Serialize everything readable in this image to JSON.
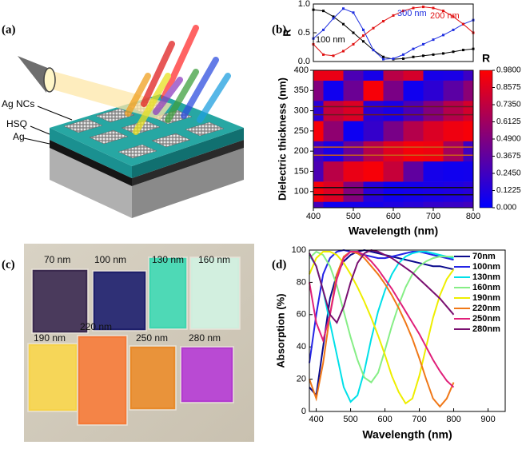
{
  "panel_labels": [
    "(a)",
    "(b)",
    "(c)",
    "(d)"
  ],
  "illustration": {
    "labels": [
      "Ag NCs",
      "HSQ",
      "Ag"
    ]
  },
  "photo": {
    "samples": [
      {
        "label": "70 nm",
        "color": "#3b2a4f"
      },
      {
        "label": "100 nm",
        "color": "#1e1f6b"
      },
      {
        "label": "130 nm",
        "color": "#3fd6b0"
      },
      {
        "label": "160 nm",
        "color": "#cfeedd"
      },
      {
        "label": "190 nm",
        "color": "#f6d34a"
      },
      {
        "label": "220 nm",
        "color": "#f47a38"
      },
      {
        "label": "250 nm",
        "color": "#e88a2a"
      },
      {
        "label": "280 nm",
        "color": "#b33bd0"
      }
    ]
  },
  "chart_data": [
    {
      "type": "line",
      "ylabel": "R",
      "markers": true,
      "x": [
        400,
        425,
        450,
        475,
        500,
        525,
        550,
        575,
        600,
        625,
        650,
        675,
        700,
        725,
        750,
        775,
        800
      ],
      "xlim": [
        400,
        800
      ],
      "ylim": [
        0,
        1
      ],
      "yticks": [
        {
          "value": 0,
          "label": "0.0"
        },
        {
          "value": 0.5,
          "label": "0.5"
        },
        {
          "value": 1,
          "label": "1.0"
        }
      ],
      "series": [
        {
          "name": "100 nm",
          "color": "#000000",
          "values": [
            0.9,
            0.88,
            0.78,
            0.65,
            0.5,
            0.35,
            0.2,
            0.08,
            0.04,
            0.05,
            0.08,
            0.1,
            0.12,
            0.14,
            0.17,
            0.2,
            0.22
          ]
        },
        {
          "name": "300 nm",
          "color": "#1f2fe0",
          "values": [
            0.4,
            0.55,
            0.75,
            0.92,
            0.85,
            0.55,
            0.2,
            0.04,
            0.05,
            0.12,
            0.22,
            0.3,
            0.38,
            0.46,
            0.55,
            0.65,
            0.72
          ]
        },
        {
          "name": "200 nm",
          "color": "#e01010",
          "values": [
            0.3,
            0.12,
            0.1,
            0.18,
            0.3,
            0.45,
            0.58,
            0.7,
            0.8,
            0.88,
            0.93,
            0.95,
            0.93,
            0.88,
            0.78,
            0.65,
            0.5
          ]
        }
      ]
    },
    {
      "type": "heatmap",
      "xlabel": "Wavelength (nm)",
      "ylabel": "Dielectric thickness (nm)",
      "colorbar_title": "R",
      "x": [
        400,
        450,
        500,
        550,
        600,
        650,
        700,
        750,
        800
      ],
      "y": [
        50,
        100,
        150,
        200,
        250,
        300,
        350,
        400
      ],
      "z": [
        [
          0.27,
          0.06,
          0.08,
          0.08,
          0.12,
          0.15,
          0.2,
          0.22,
          0.25
        ],
        [
          0.94,
          0.84,
          0.5,
          0.15,
          0.06,
          0.08,
          0.1,
          0.12,
          0.15
        ],
        [
          0.29,
          0.71,
          0.9,
          0.95,
          0.76,
          0.37,
          0.08,
          0.06,
          0.07
        ],
        [
          0.25,
          0.1,
          0.4,
          0.69,
          0.86,
          0.94,
          0.92,
          0.63,
          0.24
        ],
        [
          0.95,
          0.55,
          0.05,
          0.2,
          0.46,
          0.69,
          0.84,
          0.92,
          0.95
        ],
        [
          0.16,
          0.75,
          0.84,
          0.16,
          0.1,
          0.29,
          0.5,
          0.69,
          0.81
        ],
        [
          0.5,
          0.06,
          0.41,
          0.95,
          0.47,
          0.06,
          0.17,
          0.35,
          0.53
        ],
        [
          0.9,
          0.9,
          0.29,
          0.09,
          0.71,
          0.82,
          0.09,
          0.1,
          0.23
        ]
      ],
      "xlim": [
        400,
        800
      ],
      "ylim": [
        60,
        400
      ],
      "xticks": [
        400,
        500,
        600,
        700,
        800
      ],
      "yticks": [
        100,
        150,
        200,
        250,
        300,
        350,
        400
      ],
      "zlim": [
        0,
        0.98
      ],
      "zticks": [
        {
          "value": 0,
          "label": "0.000"
        },
        {
          "value": 0.1225,
          "label": "0.1225"
        },
        {
          "value": 0.245,
          "label": "0.2450"
        },
        {
          "value": 0.3675,
          "label": "0.3675"
        },
        {
          "value": 0.49,
          "label": "0.4900"
        },
        {
          "value": 0.6125,
          "label": "0.6125"
        },
        {
          "value": 0.735,
          "label": "0.7350"
        },
        {
          "value": 0.8575,
          "label": "0.8575"
        },
        {
          "value": 0.98,
          "label": "0.9800"
        }
      ],
      "colormap": [
        "#0000ff",
        "#ff0000"
      ],
      "guide_lines": [
        {
          "value": 92,
          "color": "#111111"
        },
        {
          "value": 110,
          "color": "#111111"
        },
        {
          "value": 190,
          "color": "#c8601a"
        },
        {
          "value": 210,
          "color": "#c8601a"
        },
        {
          "value": 290,
          "color": "#6a1a20"
        },
        {
          "value": 310,
          "color": "#6a1a20"
        }
      ]
    },
    {
      "type": "line",
      "xlabel": "Wavelength (nm)",
      "ylabel": "Absorption (%)",
      "legend": "upper right",
      "x": [
        380,
        400,
        420,
        440,
        460,
        480,
        500,
        520,
        540,
        560,
        580,
        600,
        620,
        640,
        660,
        680,
        700,
        720,
        740,
        760,
        780,
        800
      ],
      "xlim": [
        380,
        950
      ],
      "ylim": [
        0,
        100
      ],
      "xticks": [
        400,
        500,
        600,
        700,
        800,
        900
      ],
      "yticks": [
        0,
        20,
        40,
        60,
        80,
        100
      ],
      "series": [
        {
          "name": "70nm",
          "color": "#0a0a8c",
          "values": [
            15,
            10,
            40,
            70,
            85,
            93,
            97,
            99,
            100,
            99,
            98,
            97,
            96,
            95,
            94,
            93,
            92,
            91,
            90,
            90,
            89,
            88
          ]
        },
        {
          "name": "100nm",
          "color": "#2424e6",
          "values": [
            30,
            60,
            85,
            95,
            99,
            100,
            99,
            98,
            97,
            96,
            95,
            95,
            96,
            97,
            98,
            99,
            99,
            98,
            97,
            96,
            95,
            94
          ]
        },
        {
          "name": "130nm",
          "color": "#00e0e8",
          "values": [
            97,
            90,
            75,
            55,
            35,
            15,
            6,
            10,
            25,
            45,
            62,
            75,
            85,
            92,
            96,
            98,
            99,
            99,
            98,
            97,
            96,
            95
          ]
        },
        {
          "name": "160nm",
          "color": "#86ee86",
          "values": [
            95,
            99,
            97,
            90,
            78,
            62,
            46,
            32,
            21,
            18,
            24,
            38,
            53,
            66,
            77,
            85,
            90,
            93,
            95,
            96,
            96,
            96
          ]
        },
        {
          "name": "190nm",
          "color": "#eeee00",
          "values": [
            85,
            95,
            99,
            99,
            97,
            92,
            85,
            77,
            68,
            58,
            47,
            35,
            22,
            12,
            5,
            8,
            22,
            40,
            58,
            72,
            82,
            88
          ]
        },
        {
          "name": "220nm",
          "color": "#f07818",
          "values": [
            20,
            8,
            30,
            60,
            85,
            96,
            99,
            98,
            95,
            90,
            85,
            79,
            72,
            64,
            55,
            45,
            33,
            20,
            8,
            3,
            8,
            18
          ]
        },
        {
          "name": "250nm",
          "color": "#e0207a",
          "values": [
            80,
            55,
            44,
            60,
            82,
            95,
            99,
            99,
            97,
            93,
            88,
            82,
            76,
            69,
            62,
            55,
            48,
            40,
            32,
            25,
            19,
            15
          ]
        },
        {
          "name": "280nm",
          "color": "#7a1070",
          "values": [
            98,
            90,
            75,
            60,
            55,
            65,
            80,
            92,
            98,
            100,
            99,
            97,
            95,
            92,
            89,
            86,
            82,
            78,
            74,
            70,
            65,
            60
          ]
        }
      ]
    }
  ]
}
